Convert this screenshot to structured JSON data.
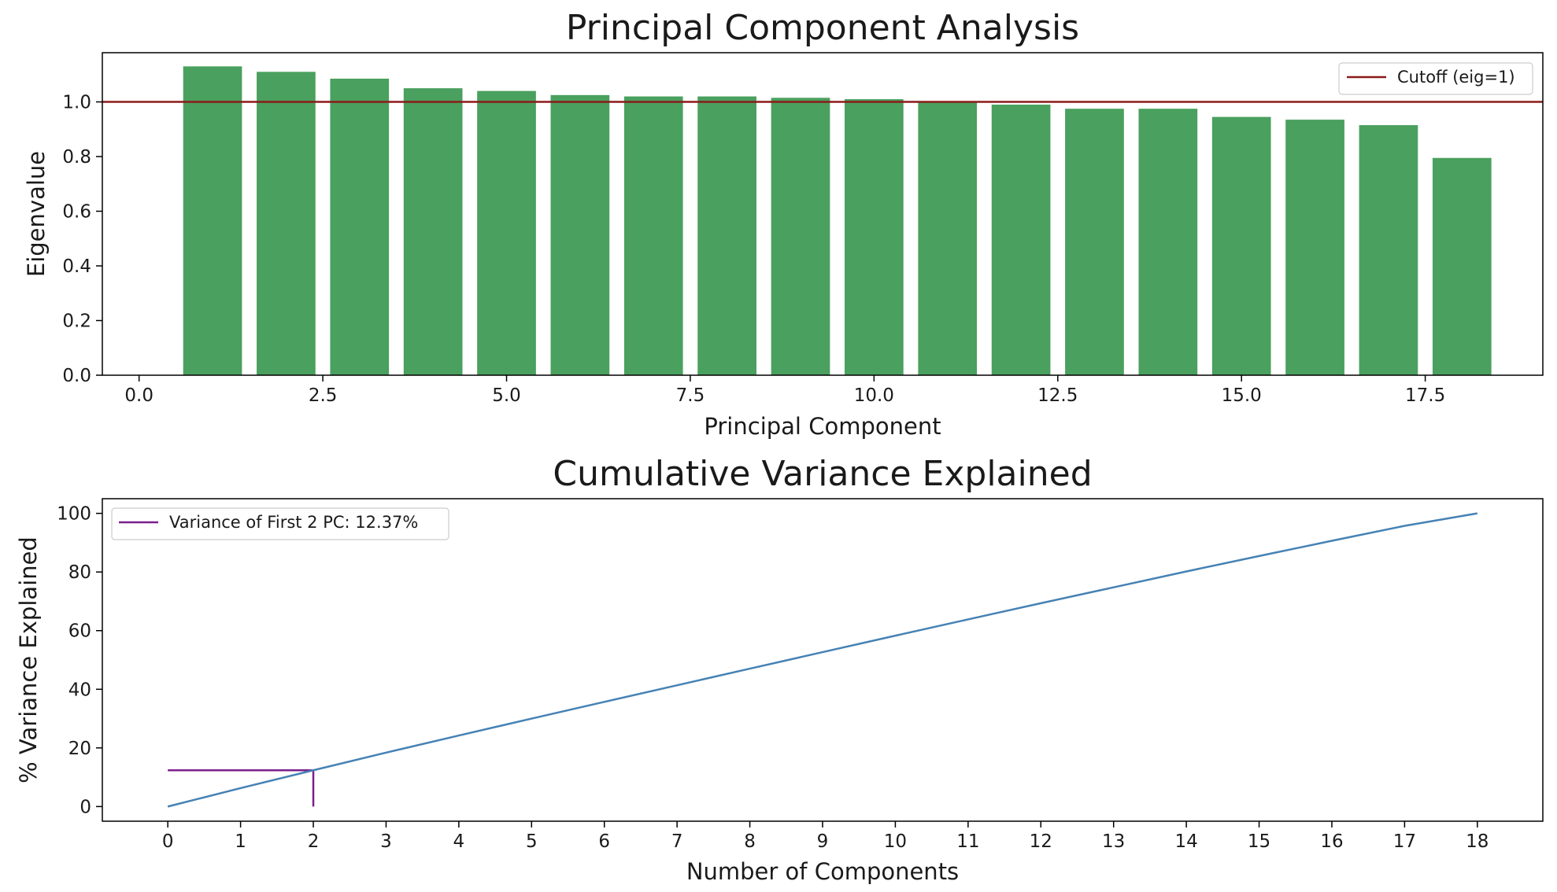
{
  "chart_data": [
    {
      "type": "bar",
      "title": "Principal Component Analysis",
      "xlabel": "Principal Component",
      "ylabel": "Eigenvalue",
      "x": [
        1,
        2,
        3,
        4,
        5,
        6,
        7,
        8,
        9,
        10,
        11,
        12,
        13,
        14,
        15,
        16,
        17,
        18
      ],
      "values": [
        1.13,
        1.11,
        1.085,
        1.05,
        1.04,
        1.025,
        1.02,
        1.02,
        1.015,
        1.01,
        1.0,
        0.99,
        0.975,
        0.975,
        0.945,
        0.935,
        0.915,
        0.795
      ],
      "bar_color": "#4aa05e",
      "xlim": [
        -0.5,
        19.1
      ],
      "ylim": [
        0,
        1.18
      ],
      "xticks": [
        "0.0",
        "2.5",
        "5.0",
        "7.5",
        "10.0",
        "12.5",
        "15.0",
        "17.5"
      ],
      "yticks": [
        "0.0",
        "0.2",
        "0.4",
        "0.6",
        "0.8",
        "1.0"
      ],
      "cutoff": {
        "y": 1.0,
        "label": "Cutoff (eig=1)",
        "color": "#8b1a1a"
      },
      "legend_position": "upper-right",
      "grid": false
    },
    {
      "type": "line",
      "title": "Cumulative Variance Explained",
      "xlabel": "Number of Components",
      "ylabel": "% Variance Explained",
      "x": [
        0,
        1,
        2,
        3,
        4,
        5,
        6,
        7,
        8,
        9,
        10,
        11,
        12,
        13,
        14,
        15,
        16,
        17,
        18
      ],
      "values": [
        0,
        6.28,
        12.37,
        18.4,
        24.23,
        30.0,
        35.7,
        41.37,
        47.03,
        52.67,
        58.28,
        63.84,
        69.35,
        74.77,
        80.19,
        85.44,
        90.64,
        95.74,
        100.0
      ],
      "line_color": "#4682b4",
      "xlim": [
        -0.9,
        18.9
      ],
      "ylim": [
        -5,
        105
      ],
      "xticks": [
        "0",
        "1",
        "2",
        "3",
        "4",
        "5",
        "6",
        "7",
        "8",
        "9",
        "10",
        "11",
        "12",
        "13",
        "14",
        "15",
        "16",
        "17",
        "18"
      ],
      "yticks": [
        "0",
        "20",
        "40",
        "60",
        "80",
        "100"
      ],
      "marker": {
        "x": 2,
        "y": 12.37,
        "label": "Variance of First 2 PC: 12.37%",
        "color": "#7b1f8c"
      },
      "legend_position": "upper-left",
      "grid": false
    }
  ]
}
